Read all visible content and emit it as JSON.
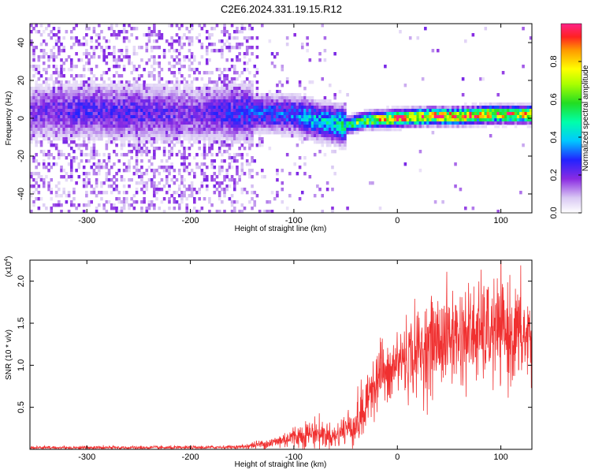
{
  "title": "C2E6.2024.331.19.15.R12",
  "chart_data": [
    {
      "type": "heatmap",
      "xlabel": "Height of straight line (km)",
      "ylabel": "Frequency (Hz)",
      "xlim": [
        -355,
        130
      ],
      "ylim": [
        -50,
        50
      ],
      "xticks": [
        -300,
        -200,
        -100,
        0,
        100
      ],
      "yticks": [
        -40,
        -20,
        0,
        20,
        40
      ],
      "colorbar": {
        "label": "Normalized spectral amplitude",
        "range": [
          0,
          1
        ],
        "ticks": [
          0.0,
          0.2,
          0.4,
          0.6,
          0.8
        ],
        "tick_labels": [
          "0.0",
          "0.2",
          "0.4",
          "0.6",
          "0.8"
        ]
      },
      "ridge": {
        "description_x": [
          -355,
          -300,
          -250,
          -200,
          -150,
          -100,
          -70,
          -50,
          -30,
          0,
          30,
          60,
          90,
          130
        ],
        "center_freq": [
          3,
          4,
          3,
          2,
          3,
          2,
          -2,
          -4,
          -1,
          0,
          1,
          1,
          2,
          2
        ],
        "peak_amplitude": [
          0.2,
          0.25,
          0.25,
          0.2,
          0.3,
          0.35,
          0.45,
          0.55,
          0.7,
          0.9,
          0.95,
          0.95,
          0.9,
          0.9
        ]
      }
    },
    {
      "type": "line",
      "xlabel": "Height of straight line (km)",
      "ylabel": "SNR (10 * v/v)",
      "y_multiplier": "(x10",
      "y_multiplier_exp": "4",
      "y_multiplier_close": ")",
      "xlim": [
        -355,
        130
      ],
      "ylim": [
        0,
        2.25
      ],
      "xticks": [
        -300,
        -200,
        -100,
        0,
        100
      ],
      "yticks": [
        0.5,
        1.0,
        1.5,
        2.0
      ],
      "ytick_labels": [
        "0.5",
        "1.0",
        "1.5",
        "2.0"
      ],
      "series": [
        {
          "color": "#f03030",
          "x": [
            -355,
            -300,
            -250,
            -200,
            -150,
            -120,
            -100,
            -80,
            -60,
            -50,
            -40,
            -30,
            -25,
            -20,
            -15,
            -10,
            0,
            20,
            40,
            60,
            80,
            100,
            120,
            130
          ],
          "y": [
            0.02,
            0.02,
            0.02,
            0.02,
            0.03,
            0.08,
            0.15,
            0.2,
            0.15,
            0.25,
            0.3,
            0.5,
            0.8,
            0.8,
            1.0,
            0.8,
            1.05,
            1.15,
            1.3,
            1.35,
            1.38,
            1.4,
            1.35,
            1.3
          ]
        }
      ]
    }
  ]
}
